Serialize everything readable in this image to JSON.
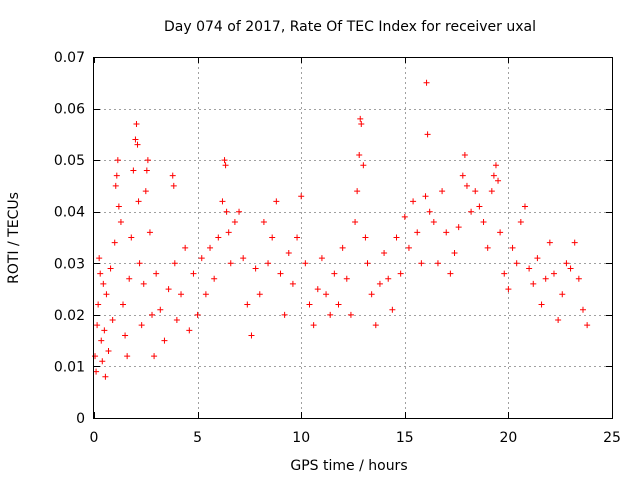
{
  "chart_data": {
    "type": "scatter",
    "title": "Day 074 of 2017, Rate Of TEC Index for receiver uxal",
    "xlabel": "GPS time / hours",
    "ylabel": "ROTI / TECUs",
    "xlim": [
      0,
      25
    ],
    "ylim": [
      0,
      0.07
    ],
    "xticks": [
      0,
      5,
      10,
      15,
      20,
      25
    ],
    "xtick_labels": [
      "0",
      "5",
      "10",
      "15",
      "20",
      "25"
    ],
    "yticks": [
      0,
      0.01,
      0.02,
      0.03,
      0.04,
      0.05,
      0.06,
      0.07
    ],
    "ytick_labels": [
      "0",
      "0.01",
      "0.02",
      "0.03",
      "0.04",
      "0.05",
      "0.06",
      "0.07"
    ],
    "grid": true,
    "marker": "+",
    "color": "#ff0000",
    "series": [
      {
        "name": "ROTI",
        "points": [
          [
            0.05,
            0.012
          ],
          [
            0.1,
            0.009
          ],
          [
            0.15,
            0.018
          ],
          [
            0.2,
            0.022
          ],
          [
            0.25,
            0.031
          ],
          [
            0.3,
            0.028
          ],
          [
            0.35,
            0.015
          ],
          [
            0.4,
            0.011
          ],
          [
            0.45,
            0.026
          ],
          [
            0.5,
            0.017
          ],
          [
            0.55,
            0.008
          ],
          [
            0.6,
            0.024
          ],
          [
            0.7,
            0.013
          ],
          [
            0.8,
            0.029
          ],
          [
            0.9,
            0.019
          ],
          [
            1.0,
            0.034
          ],
          [
            1.05,
            0.045
          ],
          [
            1.1,
            0.047
          ],
          [
            1.15,
            0.05
          ],
          [
            1.2,
            0.041
          ],
          [
            1.3,
            0.038
          ],
          [
            1.4,
            0.022
          ],
          [
            1.5,
            0.016
          ],
          [
            1.6,
            0.012
          ],
          [
            1.7,
            0.027
          ],
          [
            1.8,
            0.035
          ],
          [
            1.9,
            0.048
          ],
          [
            2.0,
            0.054
          ],
          [
            2.05,
            0.057
          ],
          [
            2.1,
            0.053
          ],
          [
            2.15,
            0.042
          ],
          [
            2.2,
            0.03
          ],
          [
            2.3,
            0.018
          ],
          [
            2.4,
            0.026
          ],
          [
            2.5,
            0.044
          ],
          [
            2.55,
            0.048
          ],
          [
            2.6,
            0.05
          ],
          [
            2.7,
            0.036
          ],
          [
            2.8,
            0.02
          ],
          [
            2.9,
            0.012
          ],
          [
            3.0,
            0.028
          ],
          [
            3.2,
            0.021
          ],
          [
            3.4,
            0.015
          ],
          [
            3.6,
            0.025
          ],
          [
            3.8,
            0.047
          ],
          [
            3.85,
            0.045
          ],
          [
            3.9,
            0.03
          ],
          [
            4.0,
            0.019
          ],
          [
            4.2,
            0.024
          ],
          [
            4.4,
            0.033
          ],
          [
            4.6,
            0.017
          ],
          [
            4.8,
            0.028
          ],
          [
            5.0,
            0.02
          ],
          [
            5.2,
            0.031
          ],
          [
            5.4,
            0.024
          ],
          [
            5.6,
            0.033
          ],
          [
            5.8,
            0.027
          ],
          [
            6.0,
            0.035
          ],
          [
            6.2,
            0.042
          ],
          [
            6.3,
            0.05
          ],
          [
            6.35,
            0.049
          ],
          [
            6.4,
            0.04
          ],
          [
            6.5,
            0.036
          ],
          [
            6.6,
            0.03
          ],
          [
            6.8,
            0.038
          ],
          [
            7.0,
            0.04
          ],
          [
            7.2,
            0.031
          ],
          [
            7.4,
            0.022
          ],
          [
            7.6,
            0.016
          ],
          [
            7.8,
            0.029
          ],
          [
            8.0,
            0.024
          ],
          [
            8.2,
            0.038
          ],
          [
            8.4,
            0.03
          ],
          [
            8.6,
            0.035
          ],
          [
            8.8,
            0.042
          ],
          [
            9.0,
            0.028
          ],
          [
            9.2,
            0.02
          ],
          [
            9.4,
            0.032
          ],
          [
            9.6,
            0.026
          ],
          [
            9.8,
            0.035
          ],
          [
            10.0,
            0.043
          ],
          [
            10.2,
            0.03
          ],
          [
            10.4,
            0.022
          ],
          [
            10.6,
            0.018
          ],
          [
            10.8,
            0.025
          ],
          [
            11.0,
            0.031
          ],
          [
            11.2,
            0.024
          ],
          [
            11.4,
            0.02
          ],
          [
            11.6,
            0.028
          ],
          [
            11.8,
            0.022
          ],
          [
            12.0,
            0.033
          ],
          [
            12.2,
            0.027
          ],
          [
            12.4,
            0.02
          ],
          [
            12.6,
            0.038
          ],
          [
            12.7,
            0.044
          ],
          [
            12.8,
            0.051
          ],
          [
            12.85,
            0.058
          ],
          [
            12.9,
            0.057
          ],
          [
            13.0,
            0.049
          ],
          [
            13.1,
            0.035
          ],
          [
            13.2,
            0.03
          ],
          [
            13.4,
            0.024
          ],
          [
            13.6,
            0.018
          ],
          [
            13.8,
            0.026
          ],
          [
            14.0,
            0.032
          ],
          [
            14.2,
            0.027
          ],
          [
            14.4,
            0.021
          ],
          [
            14.6,
            0.035
          ],
          [
            14.8,
            0.028
          ],
          [
            15.0,
            0.039
          ],
          [
            15.2,
            0.033
          ],
          [
            15.4,
            0.042
          ],
          [
            15.6,
            0.036
          ],
          [
            15.8,
            0.03
          ],
          [
            16.0,
            0.043
          ],
          [
            16.05,
            0.065
          ],
          [
            16.1,
            0.055
          ],
          [
            16.2,
            0.04
          ],
          [
            16.4,
            0.038
          ],
          [
            16.6,
            0.03
          ],
          [
            16.8,
            0.044
          ],
          [
            17.0,
            0.036
          ],
          [
            17.2,
            0.028
          ],
          [
            17.4,
            0.032
          ],
          [
            17.6,
            0.037
          ],
          [
            17.8,
            0.047
          ],
          [
            17.9,
            0.051
          ],
          [
            18.0,
            0.045
          ],
          [
            18.2,
            0.04
          ],
          [
            18.4,
            0.044
          ],
          [
            18.6,
            0.041
          ],
          [
            18.8,
            0.038
          ],
          [
            19.0,
            0.033
          ],
          [
            19.2,
            0.044
          ],
          [
            19.3,
            0.047
          ],
          [
            19.4,
            0.049
          ],
          [
            19.5,
            0.046
          ],
          [
            19.6,
            0.036
          ],
          [
            19.8,
            0.028
          ],
          [
            20.0,
            0.025
          ],
          [
            20.2,
            0.033
          ],
          [
            20.4,
            0.03
          ],
          [
            20.6,
            0.038
          ],
          [
            20.8,
            0.041
          ],
          [
            21.0,
            0.029
          ],
          [
            21.2,
            0.026
          ],
          [
            21.4,
            0.031
          ],
          [
            21.6,
            0.022
          ],
          [
            21.8,
            0.027
          ],
          [
            22.0,
            0.034
          ],
          [
            22.2,
            0.028
          ],
          [
            22.4,
            0.019
          ],
          [
            22.6,
            0.024
          ],
          [
            22.8,
            0.03
          ],
          [
            23.0,
            0.029
          ],
          [
            23.2,
            0.034
          ],
          [
            23.4,
            0.027
          ],
          [
            23.6,
            0.021
          ],
          [
            23.8,
            0.018
          ]
        ]
      }
    ]
  }
}
